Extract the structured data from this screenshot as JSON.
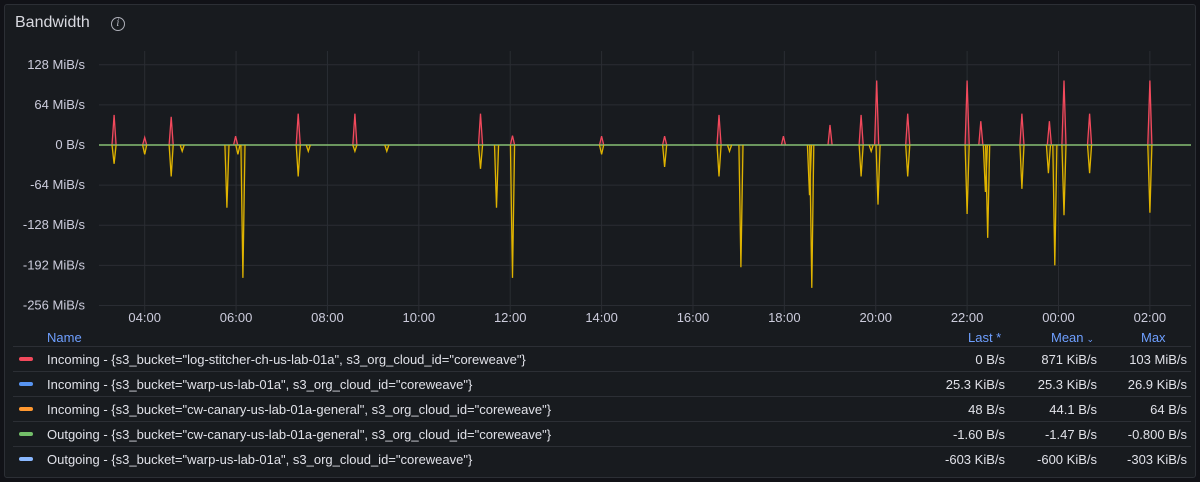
{
  "panel": {
    "title": "Bandwidth",
    "info_icon": "info-circle-icon"
  },
  "chart_data": {
    "type": "line",
    "y_ticks": [
      "128 MiB/s",
      "64 MiB/s",
      "0 B/s",
      "-64 MiB/s",
      "-128 MiB/s",
      "-192 MiB/s",
      "-256 MiB/s"
    ],
    "y_tick_values": [
      128,
      64,
      0,
      -64,
      -128,
      -192,
      -256
    ],
    "x_ticks": [
      "04:00",
      "06:00",
      "08:00",
      "10:00",
      "12:00",
      "14:00",
      "16:00",
      "18:00",
      "20:00",
      "22:00",
      "00:00",
      "02:00"
    ],
    "x_tick_hours": [
      4,
      6,
      8,
      10,
      12,
      14,
      16,
      18,
      20,
      22,
      24,
      26
    ],
    "x_range_hours": [
      3.0,
      26.9
    ],
    "y_range": [
      -268,
      150
    ],
    "units": "MiB/s",
    "grid": true,
    "series": [
      {
        "name": "Incoming - {s3_bucket=\"log-stitcher-ch-us-lab-01a\", s3_org_cloud_id=\"coreweave\"}",
        "color": "#f2495c",
        "spikes": [
          [
            3.33,
            48
          ],
          [
            4.0,
            12
          ],
          [
            4.58,
            45
          ],
          [
            5.99,
            14
          ],
          [
            7.36,
            50
          ],
          [
            8.6,
            50
          ],
          [
            11.35,
            50
          ],
          [
            12.05,
            15
          ],
          [
            14.0,
            14
          ],
          [
            15.38,
            14
          ],
          [
            16.57,
            48
          ],
          [
            17.98,
            14
          ],
          [
            19.0,
            32
          ],
          [
            19.68,
            48
          ],
          [
            20.02,
            103
          ],
          [
            20.7,
            50
          ],
          [
            22.0,
            103
          ],
          [
            22.3,
            38
          ],
          [
            23.2,
            50
          ],
          [
            23.8,
            38
          ],
          [
            24.12,
            103
          ],
          [
            24.68,
            50
          ],
          [
            26.0,
            103
          ]
        ]
      },
      {
        "name": "Incoming - {s3_bucket=\"warp-us-lab-01a\", s3_org_cloud_id=\"coreweave\"}",
        "color": "#5794f2",
        "baseline": 0.025
      },
      {
        "name": "Incoming - {s3_bucket=\"cw-canary-us-lab-01a-general\", s3_org_cloud_id=\"coreweave\"}",
        "color": "#ff9830",
        "baseline": 0
      },
      {
        "name": "Outgoing - {s3_bucket=\"cw-canary-us-lab-01a-general\", s3_org_cloud_id=\"coreweave\"}",
        "color": "#73bf69",
        "baseline": 0
      },
      {
        "name": "Outgoing - {s3_bucket=\"warp-us-lab-01a\", s3_org_cloud_id=\"coreweave\"}",
        "color": "#8ab8ff",
        "spikes": [
          [
            3.33,
            -30
          ],
          [
            4.0,
            -15
          ],
          [
            4.58,
            -50
          ],
          [
            4.82,
            -10
          ],
          [
            5.8,
            -100
          ],
          [
            6.04,
            -15
          ],
          [
            6.15,
            -212
          ],
          [
            7.36,
            -50
          ],
          [
            7.58,
            -10
          ],
          [
            8.6,
            -10
          ],
          [
            9.3,
            -10
          ],
          [
            11.35,
            -38
          ],
          [
            11.7,
            -100
          ],
          [
            12.05,
            -212
          ],
          [
            14.0,
            -15
          ],
          [
            15.38,
            -35
          ],
          [
            16.57,
            -50
          ],
          [
            16.8,
            -10
          ],
          [
            17.05,
            -195
          ],
          [
            18.55,
            -80
          ],
          [
            18.6,
            -228
          ],
          [
            19.68,
            -50
          ],
          [
            19.9,
            -10
          ],
          [
            20.05,
            -95
          ],
          [
            20.7,
            -50
          ],
          [
            22.0,
            -110
          ],
          [
            22.4,
            -75
          ],
          [
            22.45,
            -148
          ],
          [
            23.2,
            -70
          ],
          [
            23.78,
            -45
          ],
          [
            23.92,
            -192
          ],
          [
            24.12,
            -112
          ],
          [
            24.68,
            -45
          ],
          [
            26.0,
            -108
          ]
        ]
      }
    ]
  },
  "legend": {
    "headers": {
      "name": "Name",
      "last": "Last *",
      "mean": "Mean",
      "max": "Max"
    },
    "rows": [
      {
        "name": "Incoming - {s3_bucket=\"log-stitcher-ch-us-lab-01a\", s3_org_cloud_id=\"coreweave\"}",
        "last": "0 B/s",
        "mean": "871 KiB/s",
        "max": "103 MiB/s",
        "color": "#f2495c"
      },
      {
        "name": "Incoming - {s3_bucket=\"warp-us-lab-01a\", s3_org_cloud_id=\"coreweave\"}",
        "last": "25.3 KiB/s",
        "mean": "25.3 KiB/s",
        "max": "26.9 KiB/s",
        "color": "#5794f2"
      },
      {
        "name": "Incoming - {s3_bucket=\"cw-canary-us-lab-01a-general\", s3_org_cloud_id=\"coreweave\"}",
        "last": "48 B/s",
        "mean": "44.1 B/s",
        "max": "64 B/s",
        "color": "#ff9830"
      },
      {
        "name": "Outgoing - {s3_bucket=\"cw-canary-us-lab-01a-general\", s3_org_cloud_id=\"coreweave\"}",
        "last": "-1.60 B/s",
        "mean": "-1.47 B/s",
        "max": "-0.800 B/s",
        "color": "#73bf69"
      },
      {
        "name": "Outgoing - {s3_bucket=\"warp-us-lab-01a\", s3_org_cloud_id=\"coreweave\"}",
        "last": "-603 KiB/s",
        "mean": "-600 KiB/s",
        "max": "-303 KiB/s",
        "color": "#8ab8ff"
      }
    ]
  }
}
